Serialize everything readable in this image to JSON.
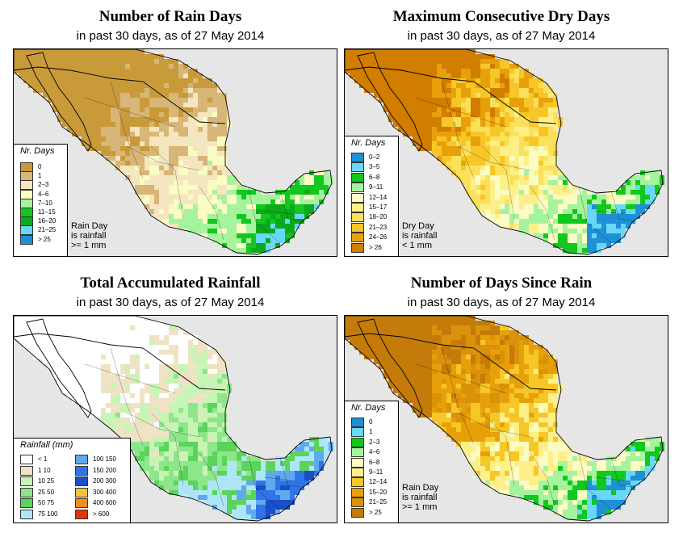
{
  "colors": {
    "ocean": "#e6e6e6",
    "border": "#000000"
  },
  "panels": [
    {
      "title": "Number of Rain Days",
      "subtitle": "in past 30 days, as of  27 May 2014",
      "legend_title": "Nr. Days",
      "note": [
        "Rain Day",
        "is rainfall",
        ">= 1 mm"
      ],
      "palette": [
        "#c99a3a",
        "#d8b677",
        "#f4e6bf",
        "#fbfbc4",
        "#a6f39d",
        "#11c81e",
        "#0aaa1a",
        "#69d7f7",
        "#1e90d6"
      ],
      "classes": [
        {
          "label": "0",
          "color": "#c99a3a"
        },
        {
          "label": "1",
          "color": "#d8b677"
        },
        {
          "label": "2–3",
          "color": "#f4e6bf"
        },
        {
          "label": "4–6",
          "color": "#fbfbc4"
        },
        {
          "label": "7–10",
          "color": "#a6f39d"
        },
        {
          "label": "11–15",
          "color": "#11c81e"
        },
        {
          "label": "16–20",
          "color": "#0aaa1a"
        },
        {
          "label": "21–25",
          "color": "#69d7f7"
        },
        {
          "label": "> 25",
          "color": "#1e90d6"
        }
      ]
    },
    {
      "title": "Maximum Consecutive Dry Days",
      "subtitle": "in past 30 days, as of  27 May 2014",
      "legend_title": "Nr. Days",
      "note": [
        "Dry Day",
        "is rainfall",
        "< 1 mm"
      ],
      "palette": [
        "#1e90d6",
        "#69d7f7",
        "#11c81e",
        "#a6f39d",
        "#fbfbc4",
        "#fdf088",
        "#fbe05b",
        "#f7c627",
        "#e8a00a",
        "#d17d00"
      ],
      "classes": [
        {
          "label": "0–2",
          "color": "#1e90d6"
        },
        {
          "label": "3–5",
          "color": "#69d7f7"
        },
        {
          "label": "6–8",
          "color": "#11c81e"
        },
        {
          "label": "9–11",
          "color": "#a6f39d"
        },
        {
          "label": "12–14",
          "color": "#fbfbc4"
        },
        {
          "label": "15–17",
          "color": "#fdf088"
        },
        {
          "label": "18–20",
          "color": "#fbe05b"
        },
        {
          "label": "21–23",
          "color": "#f7c627"
        },
        {
          "label": "24–26",
          "color": "#e8a00a"
        },
        {
          "label": "> 26",
          "color": "#d17d00"
        }
      ]
    },
    {
      "title": "Total Accumulated Rainfall",
      "subtitle": "in past 30 days, as of  27 May 2014",
      "legend_title": "Rainfall (mm)",
      "note": [],
      "palette": [
        "#ffffff",
        "#f0e2c4",
        "#c8f4b5",
        "#8ee68a",
        "#5bd45c",
        "#aee6f7",
        "#5fa9ee",
        "#2f74e6",
        "#1a4fc8",
        "#f5c342",
        "#f28d1c",
        "#e0340c"
      ],
      "classes": [
        {
          "label": "< 1",
          "color": "#ffffff"
        },
        {
          "label": "1   10",
          "color": "#f0e2c4"
        },
        {
          "label": "10   25",
          "color": "#c8f4b5"
        },
        {
          "label": "25   50",
          "color": "#8ee68a"
        },
        {
          "label": "50   75",
          "color": "#5bd45c"
        },
        {
          "label": "75  100",
          "color": "#aee6f7"
        },
        {
          "label": "100  150",
          "color": "#5fa9ee"
        },
        {
          "label": "150  200",
          "color": "#2f74e6"
        },
        {
          "label": "200  300",
          "color": "#1a4fc8"
        },
        {
          "label": "300  400",
          "color": "#f5c342"
        },
        {
          "label": "400  600",
          "color": "#f28d1c"
        },
        {
          "label": "> 600",
          "color": "#e0340c"
        }
      ]
    },
    {
      "title": "Number of Days Since Rain",
      "subtitle": "in past 30 days, as of  27 May 2014",
      "legend_title": "Nr. Days",
      "note": [
        "Rain Day",
        "is rainfall",
        ">= 1 mm"
      ],
      "palette": [
        "#1e90d6",
        "#69d7f7",
        "#11c81e",
        "#a6f39d",
        "#fbfbc4",
        "#fdf088",
        "#f7c627",
        "#e8a00a",
        "#d9920a",
        "#c57b0a"
      ],
      "classes": [
        {
          "label": "0",
          "color": "#1e90d6"
        },
        {
          "label": "1",
          "color": "#69d7f7"
        },
        {
          "label": "2–3",
          "color": "#11c81e"
        },
        {
          "label": "4–6",
          "color": "#a6f39d"
        },
        {
          "label": "6–8",
          "color": "#fbfbc4"
        },
        {
          "label": "9–11",
          "color": "#fdf088"
        },
        {
          "label": "12–14",
          "color": "#f7c627"
        },
        {
          "label": "15–20",
          "color": "#e8a00a"
        },
        {
          "label": "21–25",
          "color": "#d9920a"
        },
        {
          "label": "> 25",
          "color": "#c57b0a"
        }
      ]
    }
  ]
}
